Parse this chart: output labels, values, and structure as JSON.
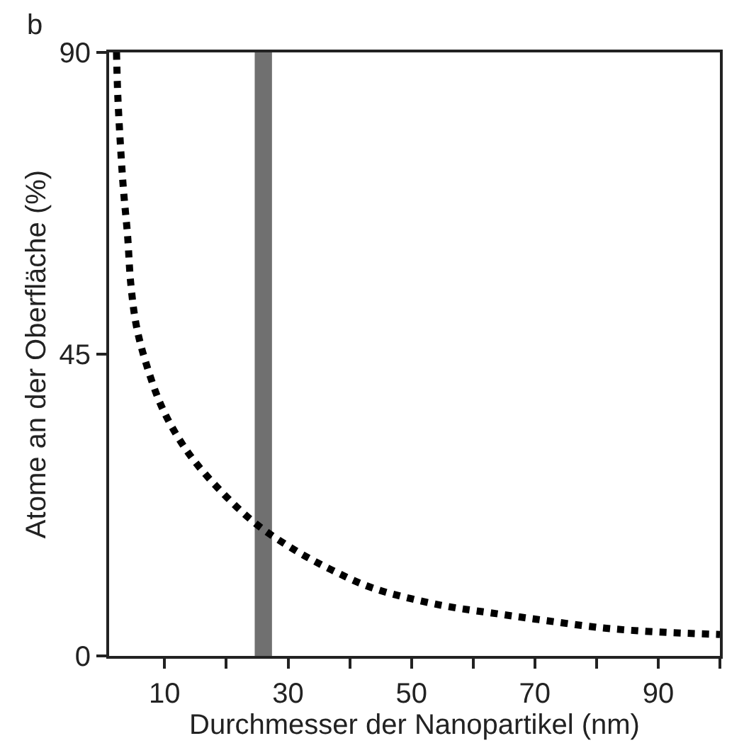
{
  "chart_data": {
    "type": "line",
    "xlabel": "Durchmesser der Nanopartikel (nm)",
    "ylabel": "Atome an der Oberfläche (%)",
    "annotations": [
      "b"
    ],
    "x": [
      2.2,
      2.4,
      2.8,
      3.3,
      4.0,
      4.5,
      5.4,
      7.0,
      9.8,
      13.9,
      19.2,
      24.8,
      30.9,
      36.9,
      43.8,
      54.6,
      63.8,
      70.0,
      80.8,
      89.3,
      100
    ],
    "series": [
      {
        "color": "#000000",
        "values": [
          90,
          83.7,
          76.7,
          69.8,
          62.6,
          55.6,
          49.3,
          43.6,
          36.6,
          30.2,
          24.5,
          19.7,
          15.9,
          12.9,
          10.1,
          7.6,
          6.3,
          5.5,
          4.2,
          3.6,
          3.2
        ]
      }
    ],
    "xlim": [
      1,
      100
    ],
    "ylim": [
      0,
      90
    ],
    "xticks": [
      10,
      {
        "value": 20,
        "label": null
      },
      30,
      {
        "value": 40,
        "label": null
      },
      50,
      {
        "value": 60,
        "label": null
      },
      70,
      {
        "value": 80,
        "label": null
      },
      90,
      {
        "value": 100,
        "label": null
      }
    ],
    "yticks": [
      0,
      45,
      90
    ],
    "bands": [
      {
        "axis": "x",
        "from": 24.6,
        "to": 27.4,
        "color": "#707070"
      }
    ],
    "grid": false,
    "marker": "none",
    "line_style": "dotted"
  }
}
